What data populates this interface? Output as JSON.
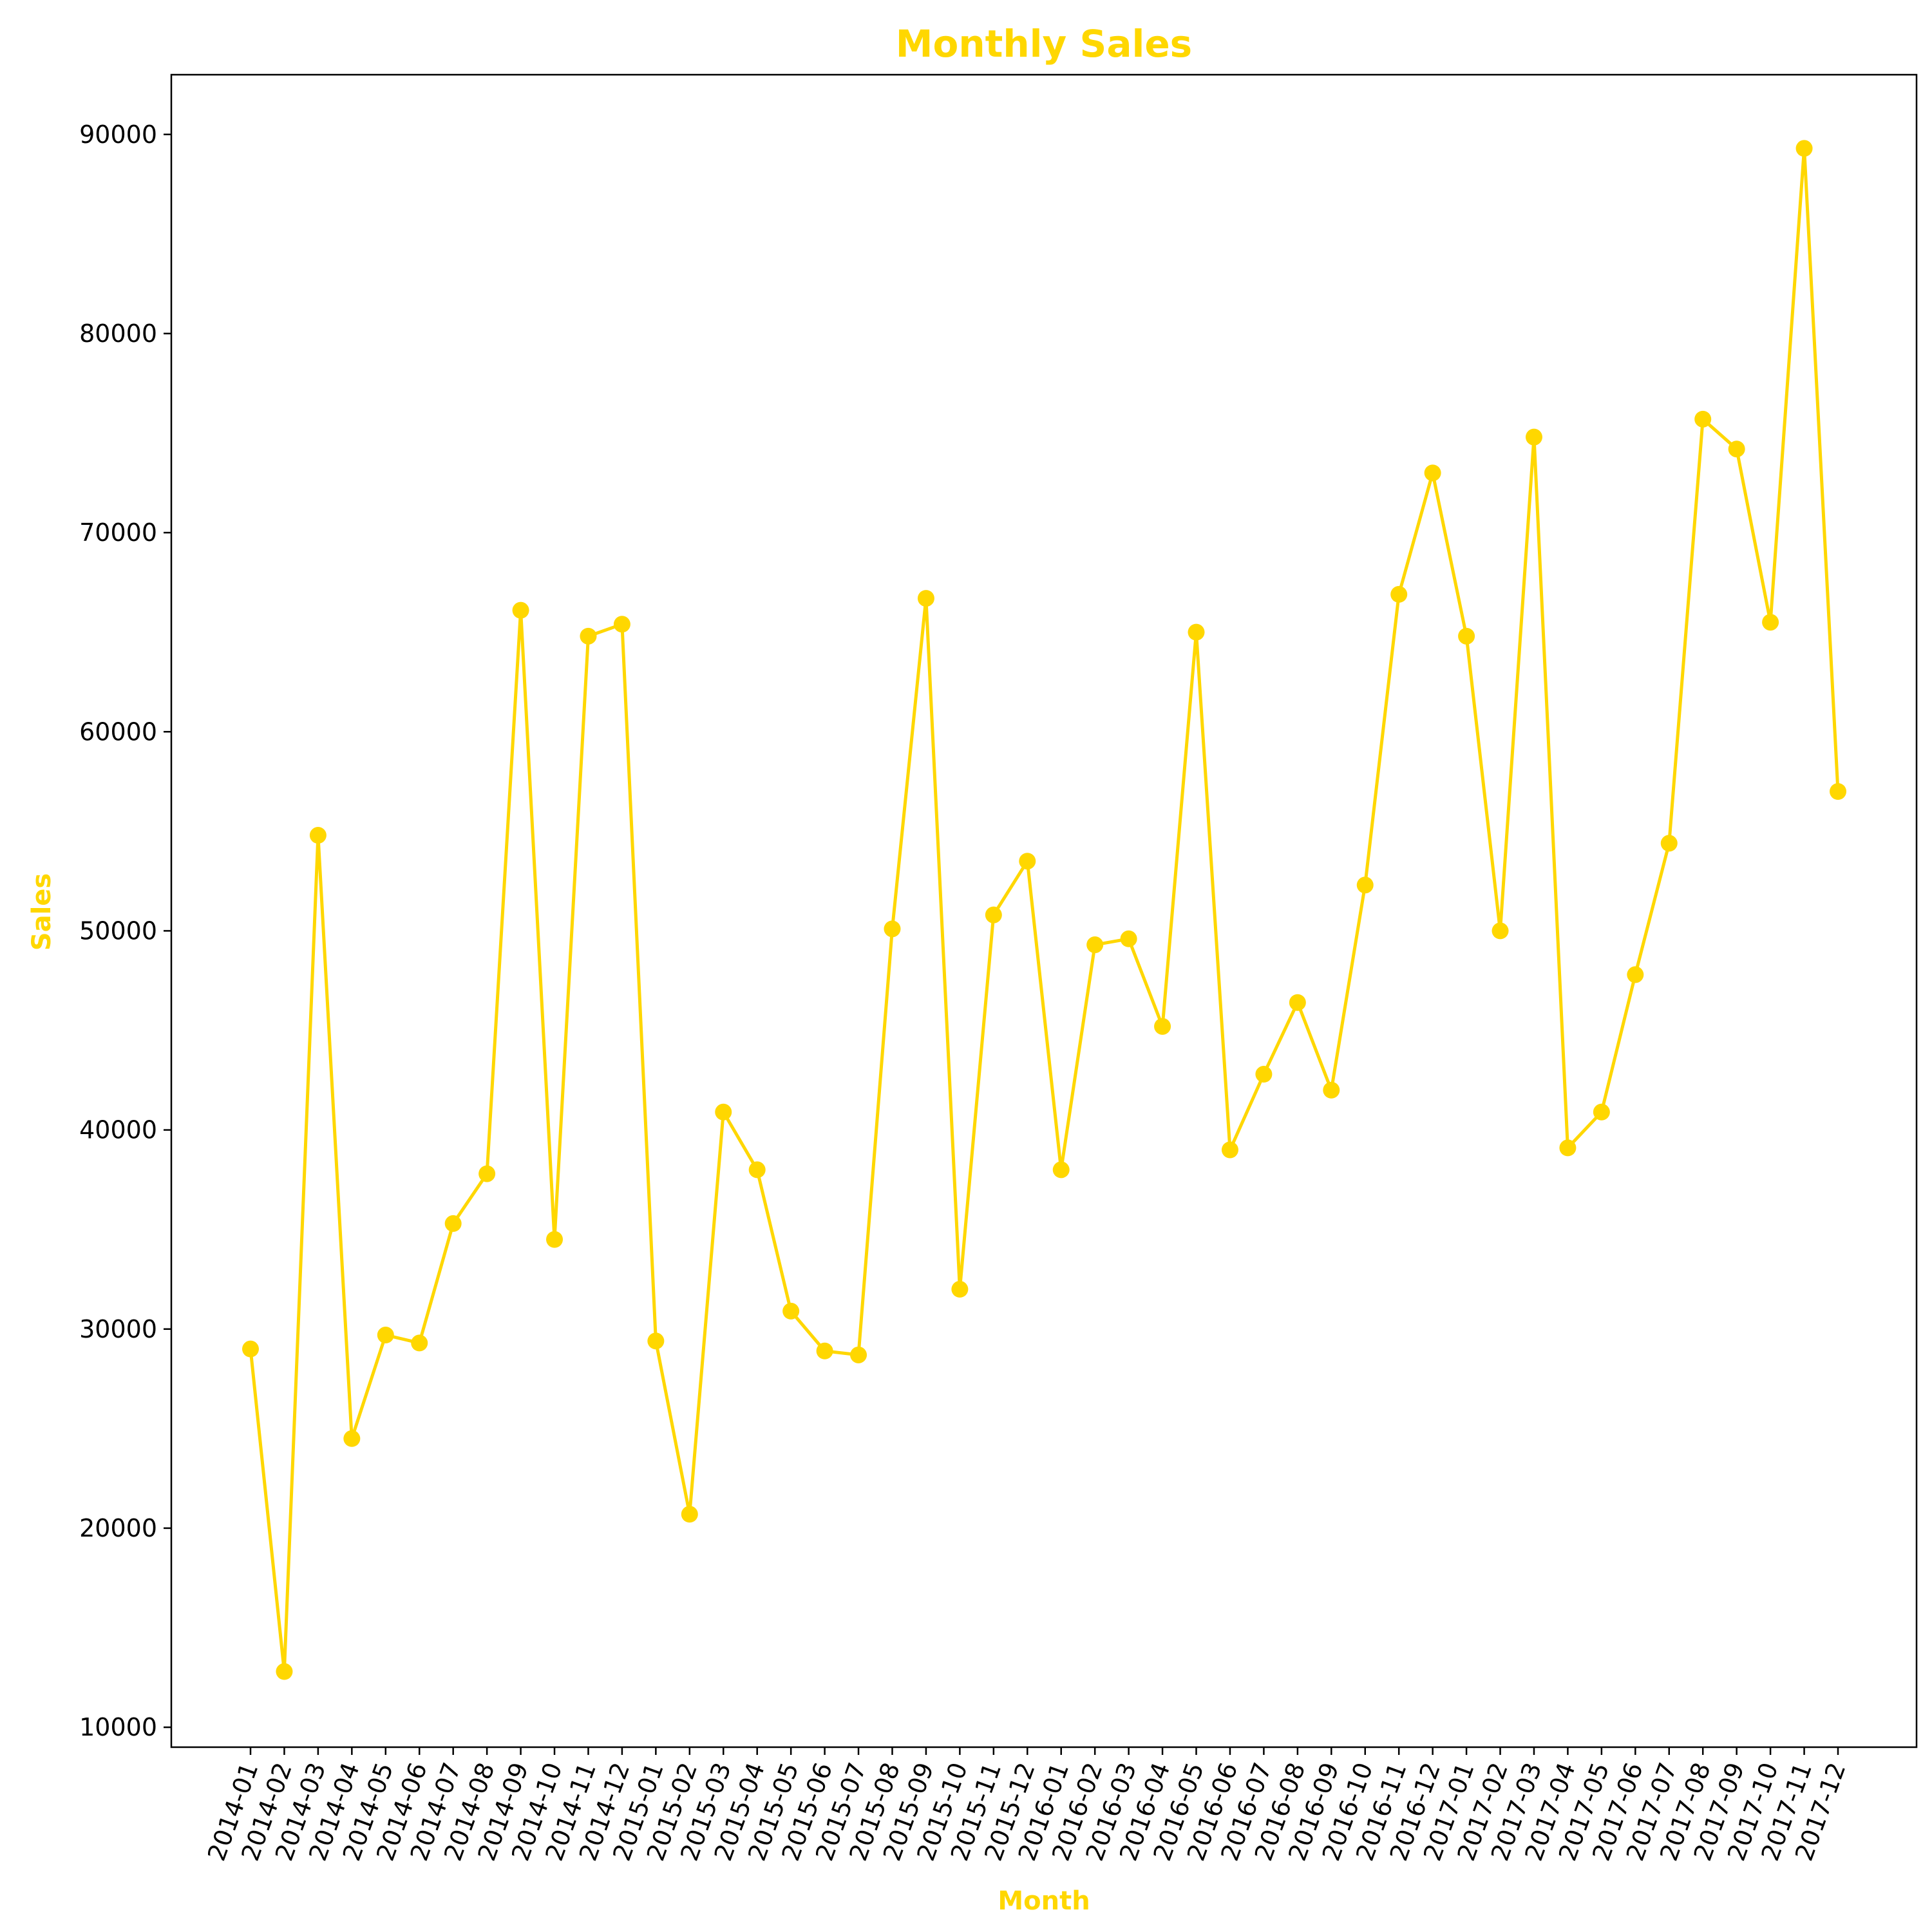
{
  "chart_data": {
    "type": "line",
    "title": "Monthly Sales",
    "xlabel": "Month",
    "ylabel": "Sales",
    "ylim": [
      9000,
      93000
    ],
    "yticks": [
      10000,
      20000,
      30000,
      40000,
      50000,
      60000,
      70000,
      80000,
      90000
    ],
    "grid": false,
    "legend": "none",
    "colors": {
      "accent": "#FFD700",
      "axis": "#000000",
      "background": "#FFFFFF"
    },
    "categories": [
      "2014-01",
      "2014-02",
      "2014-03",
      "2014-04",
      "2014-05",
      "2014-06",
      "2014-07",
      "2014-08",
      "2014-09",
      "2014-10",
      "2014-11",
      "2014-12",
      "2015-01",
      "2015-02",
      "2015-03",
      "2015-04",
      "2015-05",
      "2015-06",
      "2015-07",
      "2015-08",
      "2015-09",
      "2015-10",
      "2015-11",
      "2015-12",
      "2016-01",
      "2016-02",
      "2016-03",
      "2016-04",
      "2016-05",
      "2016-06",
      "2016-07",
      "2016-08",
      "2016-09",
      "2016-10",
      "2016-11",
      "2016-12",
      "2017-01",
      "2017-02",
      "2017-03",
      "2017-04",
      "2017-05",
      "2017-06",
      "2017-07",
      "2017-08",
      "2017-09",
      "2017-10",
      "2017-11",
      "2017-12"
    ],
    "series": [
      {
        "values": [
          29000,
          12800,
          54800,
          24500,
          29700,
          29300,
          35300,
          37800,
          66100,
          34500,
          64800,
          65400,
          29400,
          20700,
          40900,
          38000,
          30900,
          28900,
          28700,
          50100,
          66700,
          32000,
          50800,
          53500,
          38000,
          49300,
          49600,
          45200,
          65000,
          39000,
          42800,
          46400,
          42000,
          52300,
          66900,
          73000,
          64800,
          50000,
          74800,
          39100,
          40900,
          47800,
          54400,
          75700,
          74200,
          65500,
          89300,
          57000
        ]
      }
    ]
  }
}
